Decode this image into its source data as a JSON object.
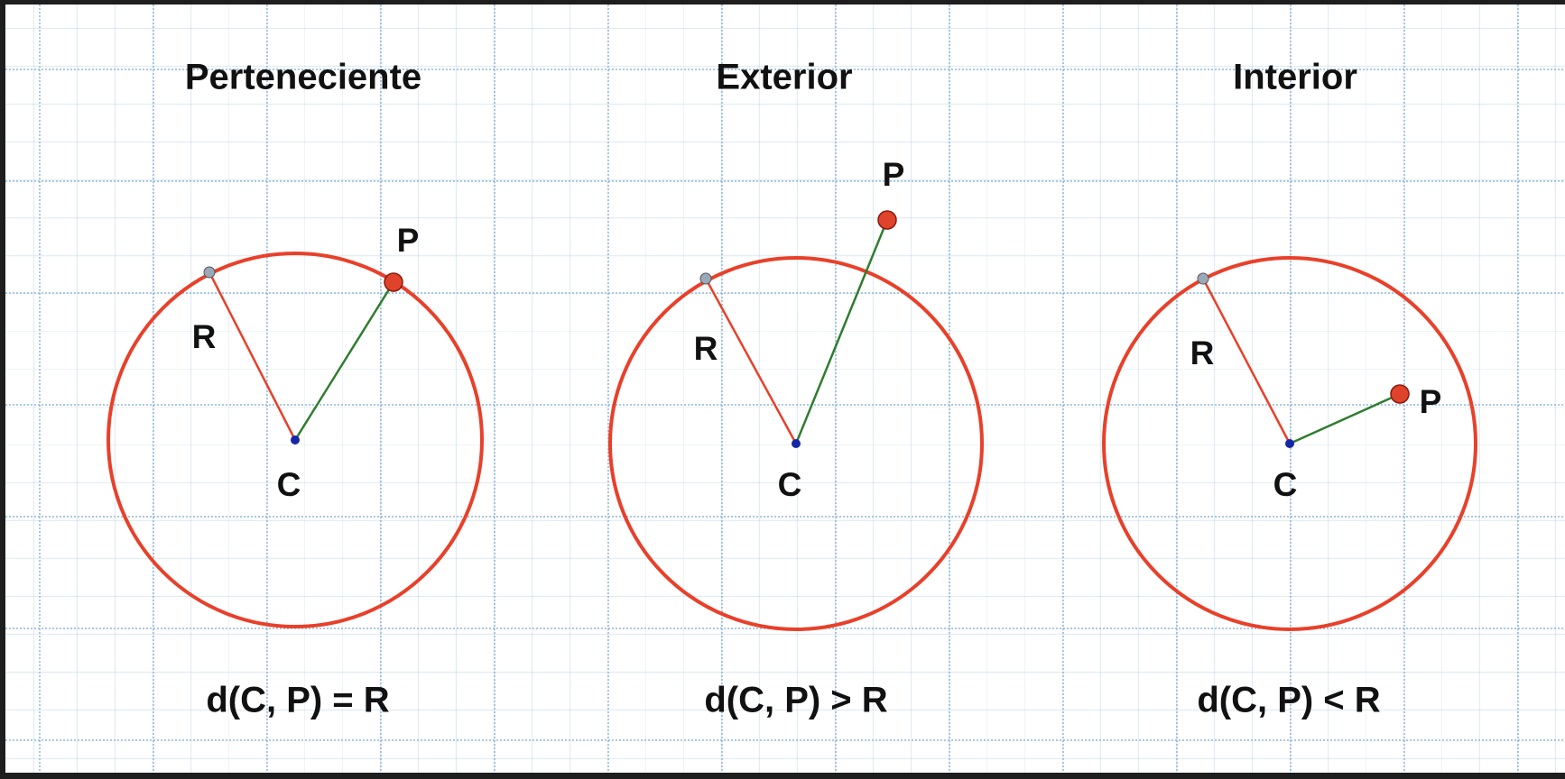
{
  "colors": {
    "circle": "#e8402a",
    "radius_line": "#e8402a",
    "distance_line": "#2e7d2e",
    "center_point": "#1526a8",
    "radius_point": "#9aa9b8",
    "point_p": "#e0432b"
  },
  "panels": [
    {
      "title": "Perteneciente",
      "formula": "d(C, P) = R",
      "label_c": "C",
      "label_r": "R",
      "label_p": "P"
    },
    {
      "title": "Exterior",
      "formula": "d(C, P) > R",
      "label_c": "C",
      "label_r": "R",
      "label_p": "P"
    },
    {
      "title": "Interior",
      "formula": "d(C, P) < R",
      "label_c": "C",
      "label_r": "R",
      "label_p": "P"
    }
  ]
}
